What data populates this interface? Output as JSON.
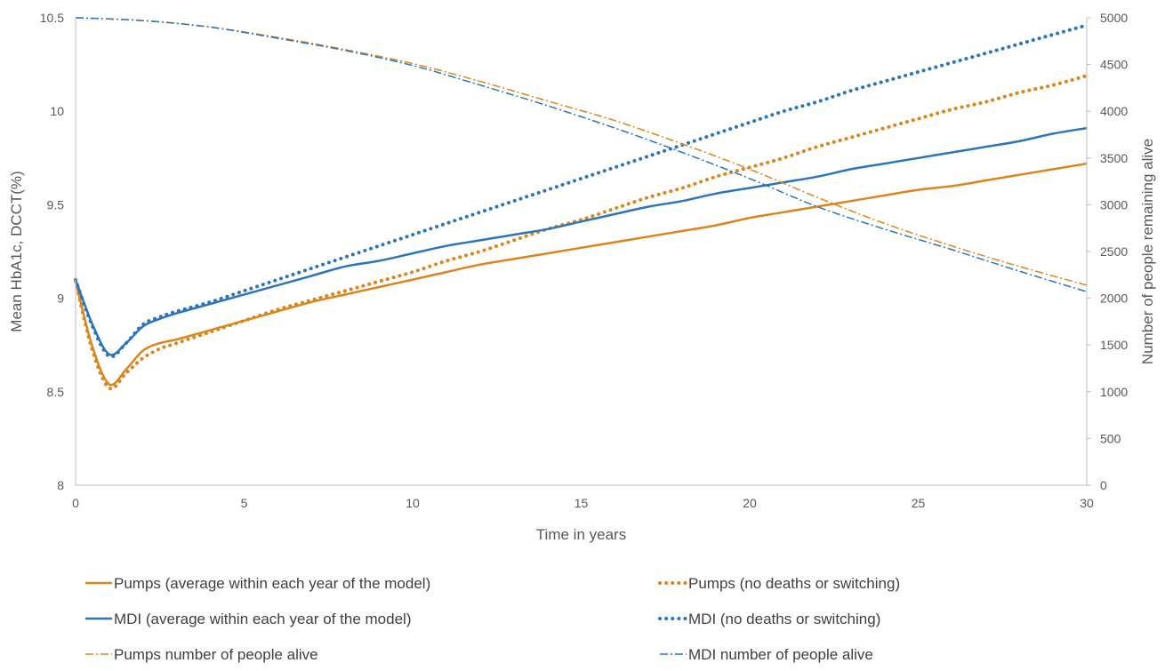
{
  "chart_data": {
    "type": "line",
    "title": "",
    "xlabel": "Time in years",
    "ylabel": "Mean HbA1c, DCCT(%)",
    "y2label": "Number of people remaining alive",
    "xlim": [
      0,
      30
    ],
    "ylim": [
      8,
      10.5
    ],
    "y2lim": [
      0,
      5000
    ],
    "x_ticks": [
      "0",
      "5",
      "10",
      "15",
      "20",
      "25",
      "30"
    ],
    "y_ticks": [
      "8",
      "8.5",
      "9",
      "9.5",
      "10",
      "10.5"
    ],
    "y2_ticks": [
      "0",
      "500",
      "1000",
      "1500",
      "2000",
      "2500",
      "3000",
      "3500",
      "4000",
      "4500",
      "5000"
    ],
    "grid": false,
    "legend_position": "bottom",
    "series": [
      {
        "name": "Pumps (average within each year of the model)",
        "axis": "left",
        "style": "solid",
        "color": "#D9861F",
        "x": [
          0,
          0.5,
          1,
          1.5,
          2,
          2.5,
          3,
          4,
          5,
          6,
          7,
          8,
          9,
          10,
          11,
          12,
          13,
          14,
          15,
          16,
          17,
          18,
          19,
          20,
          21,
          22,
          23,
          24,
          25,
          26,
          27,
          28,
          29,
          30
        ],
        "y": [
          9.09,
          8.74,
          8.54,
          8.62,
          8.72,
          8.76,
          8.78,
          8.83,
          8.88,
          8.93,
          8.98,
          9.02,
          9.06,
          9.1,
          9.14,
          9.18,
          9.21,
          9.24,
          9.27,
          9.3,
          9.33,
          9.36,
          9.39,
          9.43,
          9.46,
          9.49,
          9.52,
          9.55,
          9.58,
          9.6,
          9.63,
          9.66,
          9.69,
          9.72
        ]
      },
      {
        "name": "Pumps (no deaths or switching)",
        "axis": "left",
        "style": "dotted",
        "color": "#D9861F",
        "x": [
          0,
          0.5,
          1,
          1.5,
          2,
          2.5,
          3,
          4,
          5,
          6,
          7,
          8,
          9,
          10,
          11,
          12,
          13,
          14,
          15,
          16,
          17,
          18,
          19,
          20,
          21,
          22,
          23,
          24,
          25,
          26,
          27,
          28,
          29,
          30
        ],
        "y": [
          9.09,
          8.72,
          8.52,
          8.6,
          8.68,
          8.73,
          8.76,
          8.82,
          8.88,
          8.94,
          8.99,
          9.04,
          9.09,
          9.14,
          9.2,
          9.25,
          9.31,
          9.37,
          9.42,
          9.48,
          9.54,
          9.59,
          9.65,
          9.7,
          9.75,
          9.81,
          9.86,
          9.91,
          9.96,
          10.01,
          10.05,
          10.1,
          10.14,
          10.19
        ]
      },
      {
        "name": "MDI (average within each year of the model)",
        "axis": "left",
        "style": "solid",
        "color": "#2E75B6",
        "x": [
          0,
          0.5,
          1,
          1.5,
          2,
          2.5,
          3,
          4,
          5,
          6,
          7,
          8,
          9,
          10,
          11,
          12,
          13,
          14,
          15,
          16,
          17,
          18,
          19,
          20,
          21,
          22,
          23,
          24,
          25,
          26,
          27,
          28,
          29,
          30
        ],
        "y": [
          9.1,
          8.86,
          8.7,
          8.76,
          8.85,
          8.89,
          8.92,
          8.97,
          9.02,
          9.07,
          9.12,
          9.17,
          9.2,
          9.24,
          9.28,
          9.31,
          9.34,
          9.37,
          9.41,
          9.45,
          9.49,
          9.52,
          9.56,
          9.59,
          9.62,
          9.65,
          9.69,
          9.72,
          9.75,
          9.78,
          9.81,
          9.84,
          9.88,
          9.91
        ]
      },
      {
        "name": "MDI (no deaths or switching)",
        "axis": "left",
        "style": "dotted",
        "color": "#2E75B6",
        "x": [
          0,
          0.5,
          1,
          1.5,
          2,
          2.5,
          3,
          4,
          5,
          6,
          7,
          8,
          9,
          10,
          11,
          12,
          13,
          14,
          15,
          16,
          17,
          18,
          19,
          20,
          21,
          22,
          23,
          24,
          25,
          26,
          27,
          28,
          29,
          30
        ],
        "y": [
          9.1,
          8.85,
          8.69,
          8.76,
          8.86,
          8.9,
          8.93,
          8.98,
          9.04,
          9.1,
          9.16,
          9.22,
          9.28,
          9.34,
          9.4,
          9.46,
          9.52,
          9.58,
          9.64,
          9.7,
          9.76,
          9.82,
          9.88,
          9.94,
          10.0,
          10.05,
          10.11,
          10.16,
          10.21,
          10.26,
          10.31,
          10.36,
          10.41,
          10.46
        ]
      },
      {
        "name": "Pumps number of people alive",
        "axis": "right",
        "style": "dashdot",
        "color": "#D9861F",
        "x": [
          0,
          2,
          4,
          6,
          8,
          10,
          12,
          14,
          16,
          18,
          20,
          22,
          24,
          26,
          28,
          30
        ],
        "y": [
          5000,
          4970,
          4900,
          4790,
          4660,
          4510,
          4320,
          4110,
          3900,
          3650,
          3380,
          3080,
          2800,
          2560,
          2340,
          2140
        ]
      },
      {
        "name": "MDI number of people alive",
        "axis": "right",
        "style": "dashdot",
        "color": "#2E75B6",
        "x": [
          0,
          2,
          4,
          6,
          8,
          10,
          12,
          14,
          16,
          18,
          20,
          22,
          24,
          26,
          28,
          30
        ],
        "y": [
          5000,
          4970,
          4900,
          4780,
          4650,
          4490,
          4280,
          4060,
          3820,
          3560,
          3280,
          2980,
          2740,
          2520,
          2290,
          2070
        ]
      }
    ]
  }
}
